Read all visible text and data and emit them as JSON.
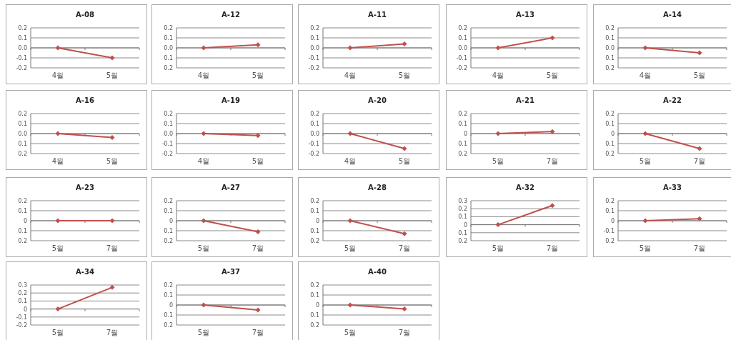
{
  "chart_data": [
    {
      "type": "line",
      "title": "A-08",
      "categories": [
        "4월",
        "5월"
      ],
      "values": [
        0,
        -0.1
      ],
      "color": "#c0504d",
      "marker": "diamond",
      "grid": "y",
      "ylim": [
        -0.2,
        0.2
      ],
      "yticks": [
        -0.2,
        -0.1,
        {
          "value": 0,
          "label": "0.0"
        },
        0.1,
        0.2
      ]
    },
    {
      "type": "line",
      "title": "A-12",
      "categories": [
        "4월",
        "5월"
      ],
      "values": [
        0,
        0.03
      ],
      "color": "#c0504d",
      "marker": "diamond",
      "grid": "y",
      "ylim": [
        -0.2,
        0.2
      ],
      "yticks": [
        {
          "value": -0.2,
          "label": "0.2"
        },
        {
          "value": -0.1,
          "label": "0.1"
        },
        {
          "value": 0,
          "label": "0.0"
        },
        0.1,
        0.2
      ]
    },
    {
      "type": "line",
      "title": "A-11",
      "categories": [
        "4월",
        "5월"
      ],
      "values": [
        0,
        0.04
      ],
      "color": "#c0504d",
      "marker": "diamond",
      "grid": "y",
      "ylim": [
        -0.2,
        0.2
      ],
      "yticks": [
        -0.2,
        -0.1,
        {
          "value": 0,
          "label": "0.0"
        },
        0.1,
        0.2
      ]
    },
    {
      "type": "line",
      "title": "A-13",
      "categories": [
        "4월",
        "5월"
      ],
      "values": [
        0,
        0.1
      ],
      "color": "#c0504d",
      "marker": "diamond",
      "grid": "y",
      "ylim": [
        -0.2,
        0.2
      ],
      "yticks": [
        -0.2,
        -0.1,
        {
          "value": 0,
          "label": "0.0"
        },
        0.1,
        0.2
      ]
    },
    {
      "type": "line",
      "title": "A-14",
      "categories": [
        "4월",
        "5월"
      ],
      "values": [
        0,
        -0.05
      ],
      "color": "#c0504d",
      "marker": "diamond",
      "grid": "y",
      "ylim": [
        -0.2,
        0.2
      ],
      "yticks": [
        {
          "value": -0.2,
          "label": "0.2"
        },
        {
          "value": -0.1,
          "label": "0.1"
        },
        {
          "value": 0,
          "label": "0.0"
        },
        0.1,
        0.2
      ]
    },
    {
      "type": "line",
      "title": "A-16",
      "categories": [
        "4월",
        "5월"
      ],
      "values": [
        0,
        -0.04
      ],
      "color": "#c0504d",
      "marker": "diamond",
      "grid": "y",
      "ylim": [
        -0.2,
        0.2
      ],
      "yticks": [
        {
          "value": -0.2,
          "label": "0.2"
        },
        {
          "value": -0.1,
          "label": "0.1"
        },
        {
          "value": 0,
          "label": "0.0"
        },
        0.1,
        0.2
      ]
    },
    {
      "type": "line",
      "title": "A-19",
      "categories": [
        "4월",
        "5월"
      ],
      "values": [
        0,
        -0.02
      ],
      "color": "#c0504d",
      "marker": "diamond",
      "grid": "y",
      "ylim": [
        -0.2,
        0.2
      ],
      "yticks": [
        -0.2,
        -0.1,
        {
          "value": 0,
          "label": "0.0"
        },
        0.1,
        0.2
      ]
    },
    {
      "type": "line",
      "title": "A-20",
      "categories": [
        "4월",
        "5월"
      ],
      "values": [
        0,
        -0.15
      ],
      "color": "#c0504d",
      "marker": "diamond",
      "grid": "y",
      "ylim": [
        -0.2,
        0.2
      ],
      "yticks": [
        -0.2,
        -0.1,
        {
          "value": 0,
          "label": "0.0"
        },
        0.1,
        0.2
      ]
    },
    {
      "type": "line",
      "title": "A-21",
      "categories": [
        "5월",
        "7월"
      ],
      "values": [
        0,
        0.02
      ],
      "color": "#c0504d",
      "marker": "diamond",
      "grid": "y",
      "ylim": [
        -0.2,
        0.2
      ],
      "yticks": [
        {
          "value": -0.2,
          "label": "0.2"
        },
        {
          "value": -0.1,
          "label": "0.1"
        },
        0,
        0.1,
        0.2
      ]
    },
    {
      "type": "line",
      "title": "A-22",
      "categories": [
        "5월",
        "7월"
      ],
      "values": [
        0,
        -0.15
      ],
      "color": "#c0504d",
      "marker": "diamond",
      "grid": "y",
      "ylim": [
        -0.2,
        0.2
      ],
      "yticks": [
        {
          "value": -0.2,
          "label": "0.2"
        },
        {
          "value": -0.1,
          "label": "0.1"
        },
        0,
        0.1,
        0.2
      ]
    },
    {
      "type": "line",
      "title": "A-23",
      "categories": [
        "5월",
        "7월"
      ],
      "values": [
        0,
        0
      ],
      "color": "#c0504d",
      "marker": "diamond",
      "grid": "y",
      "ylim": [
        -0.2,
        0.2
      ],
      "yticks": [
        {
          "value": -0.2,
          "label": "0.2"
        },
        {
          "value": -0.1,
          "label": "0.1"
        },
        0,
        0.1,
        0.2
      ]
    },
    {
      "type": "line",
      "title": "A-27",
      "categories": [
        "5월",
        "7월"
      ],
      "values": [
        0,
        -0.11
      ],
      "color": "#c0504d",
      "marker": "diamond",
      "grid": "y",
      "ylim": [
        -0.2,
        0.2
      ],
      "yticks": [
        {
          "value": -0.2,
          "label": "0.2"
        },
        {
          "value": -0.1,
          "label": "0.1"
        },
        0,
        0.1,
        0.2
      ]
    },
    {
      "type": "line",
      "title": "A-28",
      "categories": [
        "5월",
        "7월"
      ],
      "values": [
        0,
        -0.13
      ],
      "color": "#c0504d",
      "marker": "diamond",
      "grid": "y",
      "ylim": [
        -0.2,
        0.2
      ],
      "yticks": [
        {
          "value": -0.2,
          "label": "0.2"
        },
        {
          "value": -0.1,
          "label": "0.1"
        },
        0,
        0.1,
        0.2
      ]
    },
    {
      "type": "line",
      "title": "A-32",
      "categories": [
        "5월",
        "7월"
      ],
      "values": [
        0,
        0.24
      ],
      "color": "#c0504d",
      "marker": "diamond",
      "grid": "y",
      "ylim": [
        -0.2,
        0.3
      ],
      "yticks": [
        {
          "value": -0.2,
          "label": "0.2"
        },
        {
          "value": -0.1,
          "label": "0.1"
        },
        0,
        0.1,
        0.2,
        0.3
      ]
    },
    {
      "type": "line",
      "title": "A-33",
      "categories": [
        "5월",
        "7월"
      ],
      "values": [
        0,
        0.02
      ],
      "color": "#c0504d",
      "marker": "diamond",
      "grid": "y",
      "ylim": [
        -0.2,
        0.2
      ],
      "yticks": [
        {
          "value": -0.2,
          "label": "0.2"
        },
        -0.1,
        0,
        0.1,
        0.2
      ]
    },
    {
      "type": "line",
      "title": "A-34",
      "categories": [
        "5월",
        "7월"
      ],
      "values": [
        0,
        0.27
      ],
      "color": "#c0504d",
      "marker": "diamond",
      "grid": "y",
      "ylim": [
        -0.2,
        0.3
      ],
      "yticks": [
        -0.2,
        -0.1,
        0,
        0.1,
        0.2,
        0.3
      ]
    },
    {
      "type": "line",
      "title": "A-37",
      "categories": [
        "5월",
        "7월"
      ],
      "values": [
        0,
        -0.05
      ],
      "color": "#c0504d",
      "marker": "diamond",
      "grid": "y",
      "ylim": [
        -0.2,
        0.2
      ],
      "yticks": [
        {
          "value": -0.2,
          "label": "0.2"
        },
        {
          "value": -0.1,
          "label": "0.1"
        },
        0,
        0.1,
        0.2
      ]
    },
    {
      "type": "line",
      "title": "A-40",
      "categories": [
        "5월",
        "7월"
      ],
      "values": [
        0,
        -0.04
      ],
      "color": "#c0504d",
      "marker": "diamond",
      "grid": "y",
      "ylim": [
        -0.2,
        0.2
      ],
      "yticks": [
        {
          "value": -0.2,
          "label": "0.2"
        },
        {
          "value": -0.1,
          "label": "0.1"
        },
        0,
        0.1,
        0.2
      ]
    }
  ]
}
